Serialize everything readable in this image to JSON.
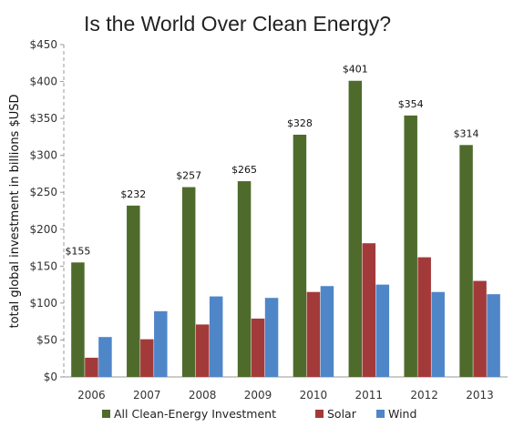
{
  "chart_data": {
    "type": "bar",
    "title": "Is the World Over Clean Energy?",
    "xlabel": "",
    "ylabel": "total global investment in billions $USD",
    "categories": [
      "2006",
      "2007",
      "2008",
      "2009",
      "2010",
      "2011",
      "2012",
      "2013"
    ],
    "series": [
      {
        "name": "All Clean-Energy Investment",
        "color": "#4e6b2c",
        "values": [
          155,
          232,
          257,
          265,
          328,
          401,
          354,
          314
        ]
      },
      {
        "name": "Solar",
        "color": "#a33a3a",
        "values": [
          26,
          51,
          71,
          79,
          115,
          181,
          162,
          130
        ]
      },
      {
        "name": "Wind",
        "color": "#4f86c8",
        "values": [
          54,
          89,
          109,
          107,
          123,
          125,
          115,
          112
        ]
      }
    ],
    "data_labels": [
      "$155",
      "$232",
      "$257",
      "$265",
      "$328",
      "$401",
      "$354",
      "$314"
    ],
    "ylim": [
      0,
      450
    ],
    "yticks": [
      0,
      50,
      100,
      150,
      200,
      250,
      300,
      350,
      400,
      450
    ],
    "ytick_labels": [
      "$0",
      "$50",
      "$100",
      "$150",
      "$200",
      "$250",
      "$300",
      "$350",
      "$400",
      "$450"
    ],
    "grid": false,
    "legend_position": "bottom"
  }
}
